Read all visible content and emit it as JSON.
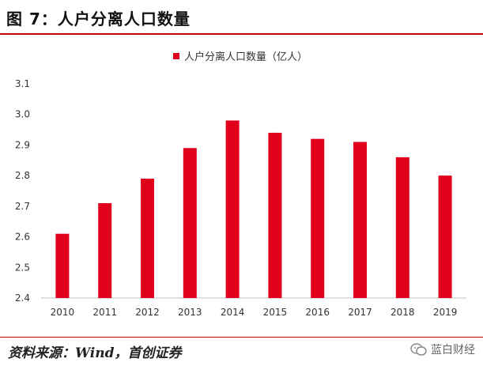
{
  "figure_title": "图 7：人户分离人口数量",
  "source_text": "资料来源：Wind，首创证券",
  "watermark": {
    "text": "蓝白财经",
    "icon": "wechat-icon"
  },
  "colors": {
    "bar": "#e0001b",
    "rule": "#c00000"
  },
  "chart_data": {
    "type": "bar",
    "title": "",
    "legend": {
      "entries": [
        "人户分离人口数量（亿人）"
      ],
      "position": "top-center"
    },
    "categories": [
      "2010",
      "2011",
      "2012",
      "2013",
      "2014",
      "2015",
      "2016",
      "2017",
      "2018",
      "2019"
    ],
    "series": [
      {
        "name": "人户分离人口数量（亿人）",
        "values": [
          2.61,
          2.71,
          2.79,
          2.89,
          2.98,
          2.94,
          2.92,
          2.91,
          2.86,
          2.8
        ]
      }
    ],
    "ylim": [
      2.4,
      3.1
    ],
    "yticks": [
      "2.4",
      "2.5",
      "2.6",
      "2.7",
      "2.8",
      "2.9",
      "3.0",
      "3.1"
    ],
    "xlabel": "",
    "ylabel": "",
    "grid": false
  }
}
